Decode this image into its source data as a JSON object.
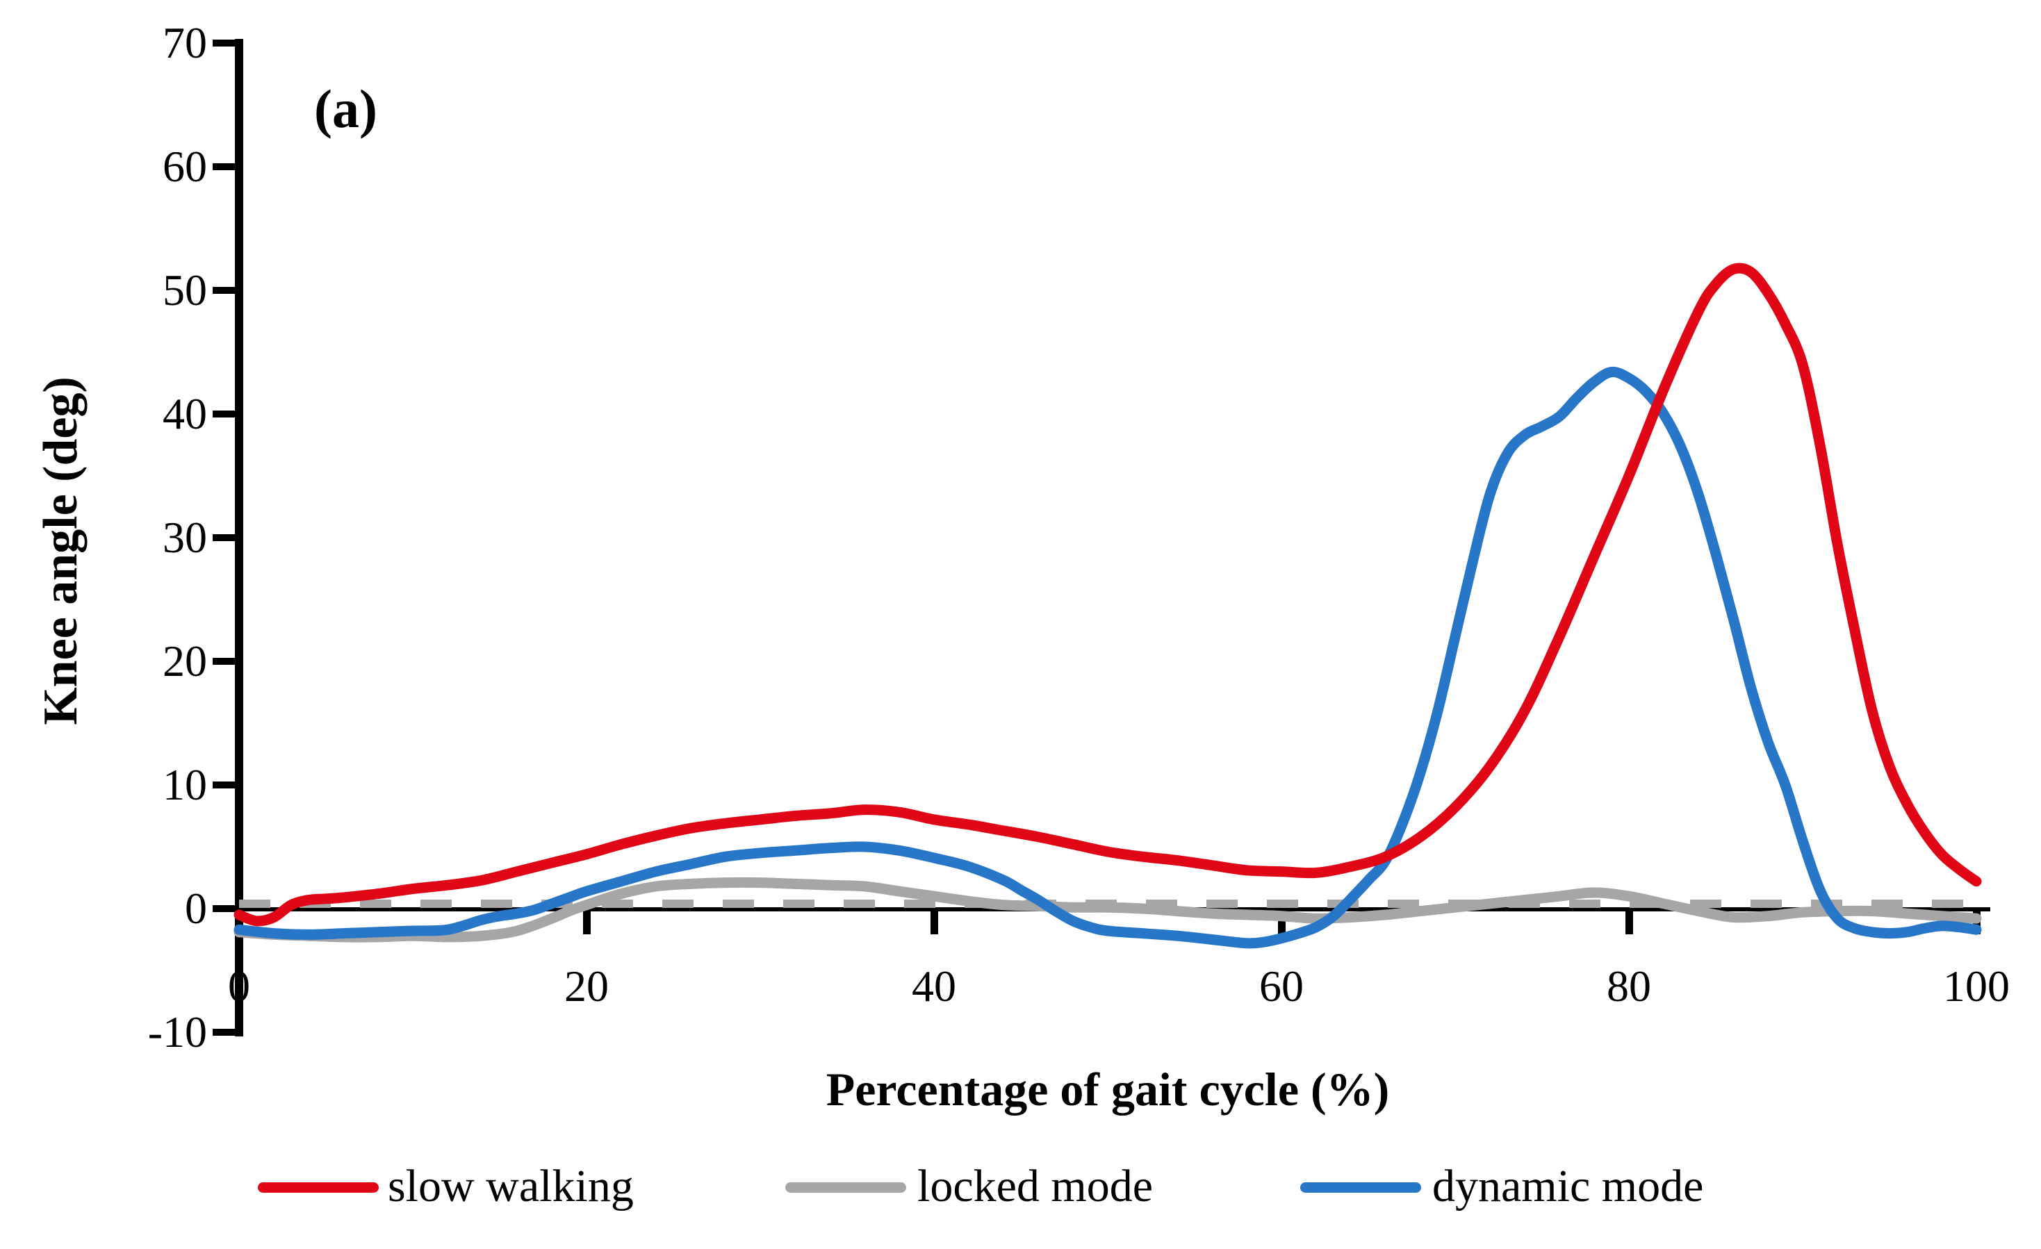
{
  "chart_data": {
    "type": "line",
    "panel_label": "(a)",
    "title": "",
    "xlabel": "Percentage of gait cycle (%)",
    "ylabel": "Knee angle (deg)",
    "xlim": [
      0,
      100
    ],
    "ylim": [
      -10,
      70
    ],
    "grid": false,
    "legend_position": "bottom",
    "baseline": {
      "value": 0,
      "style": "dashed",
      "dash_color": "#a6a6a6",
      "line_color": "#000000"
    },
    "x_tick_values": [
      0,
      20,
      40,
      60,
      80,
      100
    ],
    "x_tick_labels": [
      "0",
      "20",
      "40",
      "60",
      "80",
      "100"
    ],
    "y_tick_values": [
      70,
      60,
      50,
      40,
      30,
      20,
      10,
      0,
      -10
    ],
    "y_tick_labels": [
      "70",
      "60",
      "50",
      "40",
      "30",
      "20",
      "10",
      "0",
      "-10"
    ],
    "series": [
      {
        "name": "slow walking",
        "color": "#e00615",
        "points": [
          [
            0,
            -0.5
          ],
          [
            1,
            -1.0
          ],
          [
            2,
            -0.7
          ],
          [
            3,
            0.3
          ],
          [
            4,
            0.7
          ],
          [
            5,
            0.8
          ],
          [
            6,
            0.9
          ],
          [
            8,
            1.2
          ],
          [
            10,
            1.6
          ],
          [
            12,
            1.9
          ],
          [
            14,
            2.3
          ],
          [
            16,
            3.0
          ],
          [
            18,
            3.7
          ],
          [
            20,
            4.4
          ],
          [
            22,
            5.2
          ],
          [
            24,
            5.9
          ],
          [
            26,
            6.5
          ],
          [
            28,
            6.9
          ],
          [
            30,
            7.2
          ],
          [
            32,
            7.5
          ],
          [
            34,
            7.7
          ],
          [
            36,
            8.0
          ],
          [
            38,
            7.8
          ],
          [
            40,
            7.2
          ],
          [
            42,
            6.8
          ],
          [
            44,
            6.3
          ],
          [
            46,
            5.8
          ],
          [
            48,
            5.2
          ],
          [
            50,
            4.6
          ],
          [
            52,
            4.2
          ],
          [
            54,
            3.9
          ],
          [
            56,
            3.5
          ],
          [
            58,
            3.1
          ],
          [
            60,
            3.0
          ],
          [
            62,
            2.9
          ],
          [
            64,
            3.4
          ],
          [
            66,
            4.2
          ],
          [
            68,
            5.8
          ],
          [
            70,
            8.2
          ],
          [
            72,
            11.5
          ],
          [
            74,
            16.0
          ],
          [
            76,
            22.0
          ],
          [
            78,
            28.5
          ],
          [
            80,
            35.0
          ],
          [
            82,
            42.0
          ],
          [
            84,
            48.3
          ],
          [
            85,
            50.5
          ],
          [
            86,
            51.7
          ],
          [
            87,
            51.5
          ],
          [
            88,
            49.8
          ],
          [
            89,
            47.3
          ],
          [
            90,
            44.0
          ],
          [
            91,
            37.5
          ],
          [
            92,
            29.5
          ],
          [
            93,
            22.5
          ],
          [
            94,
            16.0
          ],
          [
            95,
            11.5
          ],
          [
            96,
            8.5
          ],
          [
            97,
            6.2
          ],
          [
            98,
            4.4
          ],
          [
            99,
            3.2
          ],
          [
            100,
            2.2
          ]
        ]
      },
      {
        "name": "locked mode",
        "color": "#a6a6a6",
        "points": [
          [
            0,
            -1.9
          ],
          [
            2,
            -2.1
          ],
          [
            4,
            -2.2
          ],
          [
            6,
            -2.3
          ],
          [
            8,
            -2.3
          ],
          [
            10,
            -2.2
          ],
          [
            12,
            -2.3
          ],
          [
            14,
            -2.2
          ],
          [
            16,
            -1.8
          ],
          [
            18,
            -0.8
          ],
          [
            19,
            -0.2
          ],
          [
            20,
            0.3
          ],
          [
            22,
            1.2
          ],
          [
            24,
            1.8
          ],
          [
            26,
            2.0
          ],
          [
            28,
            2.1
          ],
          [
            30,
            2.1
          ],
          [
            32,
            2.0
          ],
          [
            34,
            1.9
          ],
          [
            36,
            1.8
          ],
          [
            38,
            1.4
          ],
          [
            40,
            1.0
          ],
          [
            42,
            0.6
          ],
          [
            44,
            0.3
          ],
          [
            46,
            0.2
          ],
          [
            48,
            0.1
          ],
          [
            50,
            0.1
          ],
          [
            52,
            0.0
          ],
          [
            54,
            -0.2
          ],
          [
            56,
            -0.4
          ],
          [
            58,
            -0.5
          ],
          [
            60,
            -0.6
          ],
          [
            62,
            -0.8
          ],
          [
            64,
            -0.7
          ],
          [
            66,
            -0.5
          ],
          [
            68,
            -0.2
          ],
          [
            70,
            0.1
          ],
          [
            72,
            0.4
          ],
          [
            74,
            0.7
          ],
          [
            76,
            1.0
          ],
          [
            78,
            1.3
          ],
          [
            80,
            1.0
          ],
          [
            82,
            0.4
          ],
          [
            84,
            -0.2
          ],
          [
            86,
            -0.7
          ],
          [
            88,
            -0.6
          ],
          [
            90,
            -0.3
          ],
          [
            92,
            -0.2
          ],
          [
            94,
            -0.2
          ],
          [
            96,
            -0.4
          ],
          [
            98,
            -0.6
          ],
          [
            100,
            -0.8
          ]
        ]
      },
      {
        "name": "dynamic mode",
        "color": "#2776c8",
        "points": [
          [
            0,
            -1.7
          ],
          [
            2,
            -2.0
          ],
          [
            4,
            -2.1
          ],
          [
            6,
            -2.0
          ],
          [
            8,
            -1.9
          ],
          [
            10,
            -1.8
          ],
          [
            12,
            -1.7
          ],
          [
            14,
            -0.9
          ],
          [
            15,
            -0.6
          ],
          [
            16,
            -0.4
          ],
          [
            17,
            -0.1
          ],
          [
            18,
            0.4
          ],
          [
            19,
            0.9
          ],
          [
            20,
            1.4
          ],
          [
            22,
            2.2
          ],
          [
            24,
            3.0
          ],
          [
            26,
            3.6
          ],
          [
            28,
            4.2
          ],
          [
            30,
            4.5
          ],
          [
            32,
            4.7
          ],
          [
            34,
            4.9
          ],
          [
            36,
            5.0
          ],
          [
            38,
            4.7
          ],
          [
            40,
            4.1
          ],
          [
            42,
            3.4
          ],
          [
            44,
            2.3
          ],
          [
            45,
            1.5
          ],
          [
            46,
            0.7
          ],
          [
            47,
            -0.2
          ],
          [
            48,
            -1.0
          ],
          [
            49,
            -1.5
          ],
          [
            50,
            -1.8
          ],
          [
            52,
            -2.0
          ],
          [
            54,
            -2.2
          ],
          [
            56,
            -2.5
          ],
          [
            58,
            -2.8
          ],
          [
            59,
            -2.7
          ],
          [
            60,
            -2.4
          ],
          [
            61,
            -2.0
          ],
          [
            62,
            -1.5
          ],
          [
            63,
            -0.6
          ],
          [
            64,
            0.8
          ],
          [
            65,
            2.3
          ],
          [
            66,
            3.9
          ],
          [
            67,
            7.0
          ],
          [
            68,
            11.0
          ],
          [
            69,
            16.0
          ],
          [
            70,
            22.0
          ],
          [
            71,
            28.0
          ],
          [
            72,
            33.5
          ],
          [
            73,
            36.8
          ],
          [
            74,
            38.3
          ],
          [
            75,
            39.0
          ],
          [
            76,
            39.8
          ],
          [
            77,
            41.3
          ],
          [
            78,
            42.6
          ],
          [
            79,
            43.4
          ],
          [
            80,
            42.9
          ],
          [
            81,
            41.8
          ],
          [
            82,
            40.0
          ],
          [
            83,
            37.3
          ],
          [
            84,
            33.5
          ],
          [
            85,
            28.7
          ],
          [
            86,
            23.5
          ],
          [
            87,
            18.0
          ],
          [
            88,
            13.5
          ],
          [
            89,
            10.0
          ],
          [
            90,
            5.5
          ],
          [
            91,
            1.5
          ],
          [
            92,
            -0.8
          ],
          [
            93,
            -1.6
          ],
          [
            94,
            -1.9
          ],
          [
            95,
            -2.0
          ],
          [
            96,
            -1.9
          ],
          [
            97,
            -1.6
          ],
          [
            98,
            -1.4
          ],
          [
            99,
            -1.5
          ],
          [
            100,
            -1.7
          ]
        ]
      }
    ]
  }
}
